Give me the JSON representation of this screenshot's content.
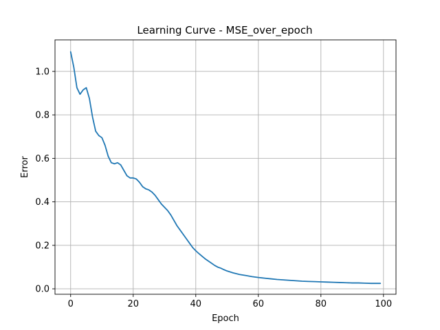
{
  "chart_data": {
    "type": "line",
    "title": "Learning Curve - MSE_over_epoch",
    "xlabel": "Epoch",
    "ylabel": "Error",
    "xlim": [
      -5,
      104
    ],
    "ylim": [
      -0.025,
      1.145
    ],
    "xticks": [
      0,
      20,
      40,
      60,
      80,
      100
    ],
    "xtick_labels": [
      "0",
      "20",
      "40",
      "60",
      "80",
      "100"
    ],
    "yticks": [
      0.0,
      0.2,
      0.4,
      0.6,
      0.8,
      1.0
    ],
    "ytick_labels": [
      "0.0",
      "0.2",
      "0.4",
      "0.6",
      "0.8",
      "1.0"
    ],
    "grid": true,
    "line_color": "#1f77b4",
    "series": [
      {
        "x": [
          0,
          1,
          2,
          3,
          4,
          5,
          6,
          7,
          8,
          9,
          10,
          11,
          12,
          13,
          14,
          15,
          16,
          17,
          18,
          19,
          20,
          21,
          22,
          23,
          24,
          25,
          26,
          27,
          28,
          29,
          30,
          31,
          32,
          33,
          34,
          35,
          36,
          37,
          38,
          39,
          40,
          41,
          42,
          43,
          44,
          45,
          46,
          47,
          48,
          49,
          50,
          52,
          54,
          56,
          58,
          60,
          62,
          64,
          66,
          68,
          70,
          72,
          74,
          76,
          78,
          80,
          82,
          84,
          86,
          88,
          90,
          92,
          94,
          96,
          98,
          99
        ],
        "values": [
          1.09,
          1.02,
          0.925,
          0.895,
          0.915,
          0.925,
          0.875,
          0.79,
          0.725,
          0.705,
          0.695,
          0.66,
          0.61,
          0.58,
          0.575,
          0.58,
          0.57,
          0.545,
          0.52,
          0.51,
          0.51,
          0.505,
          0.49,
          0.47,
          0.46,
          0.455,
          0.445,
          0.43,
          0.41,
          0.39,
          0.375,
          0.36,
          0.34,
          0.315,
          0.29,
          0.27,
          0.25,
          0.23,
          0.21,
          0.19,
          0.175,
          0.162,
          0.15,
          0.138,
          0.128,
          0.118,
          0.108,
          0.1,
          0.095,
          0.088,
          0.082,
          0.073,
          0.066,
          0.061,
          0.056,
          0.052,
          0.049,
          0.046,
          0.043,
          0.041,
          0.039,
          0.037,
          0.035,
          0.034,
          0.033,
          0.032,
          0.031,
          0.03,
          0.029,
          0.028,
          0.027,
          0.027,
          0.026,
          0.025,
          0.025,
          0.025
        ]
      }
    ]
  }
}
